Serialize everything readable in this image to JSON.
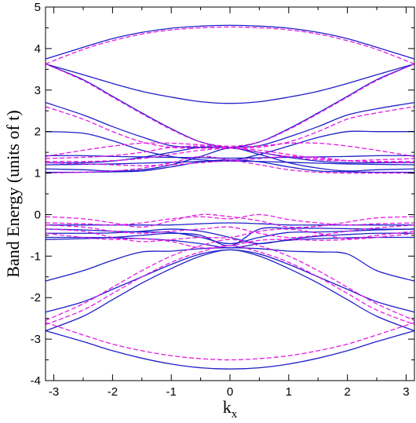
{
  "chart_data": {
    "type": "line",
    "title": "",
    "xlabel": "k",
    "xlabel_subscript": "x",
    "ylabel": "Band Energy (units of t)",
    "xlim": [
      -3.1416,
      3.1416
    ],
    "ylim": [
      -4,
      5
    ],
    "xticks": [
      -3,
      -2,
      -1,
      0,
      1,
      2,
      3
    ],
    "yticks": [
      -4,
      -3,
      -2,
      -1,
      0,
      1,
      2,
      3,
      4,
      5
    ],
    "grid": false,
    "legend": "none",
    "colors": {
      "solid": "#1f1fc8",
      "dashed": "#e619e6"
    },
    "x": [
      -3.1416,
      -2.5,
      -2.0,
      -1.5,
      -1.0,
      -0.5,
      0.0,
      0.5,
      1.0,
      1.5,
      2.0,
      2.5,
      3.1416
    ],
    "series": [
      {
        "style": "solid",
        "values": [
          3.75,
          4.03,
          4.24,
          4.39,
          4.49,
          4.54,
          4.56,
          4.54,
          4.49,
          4.39,
          4.24,
          4.03,
          3.75
        ]
      },
      {
        "style": "solid",
        "values": [
          3.63,
          3.37,
          3.16,
          2.97,
          2.83,
          2.72,
          2.68,
          2.72,
          2.83,
          2.97,
          3.16,
          3.37,
          3.63
        ]
      },
      {
        "style": "solid",
        "values": [
          3.63,
          3.25,
          2.85,
          2.45,
          2.07,
          1.75,
          1.62,
          1.75,
          2.07,
          2.45,
          2.85,
          3.25,
          3.63
        ]
      },
      {
        "style": "solid",
        "values": [
          2.7,
          2.4,
          2.12,
          1.87,
          1.66,
          1.62,
          1.62,
          1.5,
          1.38,
          1.29,
          1.25,
          1.25,
          1.25
        ]
      },
      {
        "style": "solid",
        "values": [
          2.0,
          1.96,
          1.78,
          1.55,
          1.4,
          1.32,
          1.3,
          1.45,
          1.65,
          1.86,
          2.0,
          2.0,
          2.0
        ]
      },
      {
        "style": "solid",
        "values": [
          1.25,
          1.25,
          1.29,
          1.38,
          1.5,
          1.62,
          1.62,
          1.66,
          1.87,
          2.12,
          2.4,
          2.55,
          2.7
        ]
      },
      {
        "style": "solid",
        "values": [
          1.42,
          1.42,
          1.4,
          1.39,
          1.38,
          1.37,
          1.36,
          1.37,
          1.38,
          1.39,
          1.4,
          1.42,
          1.42
        ]
      },
      {
        "style": "solid",
        "values": [
          1.1,
          1.08,
          1.05,
          1.08,
          1.2,
          1.4,
          1.6,
          1.45,
          1.25,
          1.12,
          1.05,
          1.08,
          1.1
        ]
      },
      {
        "style": "solid",
        "values": [
          1.02,
          1.02,
          1.03,
          1.05,
          1.15,
          1.27,
          1.32,
          1.27,
          1.15,
          1.05,
          1.03,
          1.02,
          1.02
        ]
      },
      {
        "style": "solid",
        "values": [
          1.2,
          1.21,
          1.22,
          1.24,
          1.26,
          1.28,
          1.29,
          1.28,
          1.26,
          1.24,
          1.22,
          1.21,
          1.2
        ]
      },
      {
        "style": "solid",
        "values": [
          -0.25,
          -0.25,
          -0.25,
          -0.25,
          -0.25,
          -0.22,
          -0.2,
          -0.22,
          -0.25,
          -0.25,
          -0.25,
          -0.25,
          -0.25
        ]
      },
      {
        "style": "solid",
        "values": [
          -0.35,
          -0.37,
          -0.4,
          -0.42,
          -0.43,
          -0.55,
          -0.7,
          -0.55,
          -0.43,
          -0.42,
          -0.4,
          -0.37,
          -0.35
        ]
      },
      {
        "style": "solid",
        "values": [
          -0.45,
          -0.45,
          -0.44,
          -0.4,
          -0.35,
          -0.4,
          -0.55,
          -0.7,
          -0.6,
          -0.52,
          -0.48,
          -0.45,
          -0.45
        ]
      },
      {
        "style": "solid",
        "values": [
          -0.55,
          -0.55,
          -0.56,
          -0.58,
          -0.62,
          -0.7,
          -0.8,
          -0.7,
          -0.62,
          -0.58,
          -0.56,
          -0.55,
          -0.55
        ]
      },
      {
        "style": "solid",
        "values": [
          -0.6,
          -0.58,
          -0.55,
          -0.5,
          -0.45,
          -0.5,
          -0.75,
          -0.35,
          -0.33,
          -0.33,
          -0.34,
          -0.35,
          -0.35
        ]
      },
      {
        "style": "solid",
        "values": [
          -1.6,
          -1.35,
          -1.1,
          -0.9,
          -0.88,
          -0.82,
          -0.8,
          -0.82,
          -0.88,
          -0.9,
          -0.95,
          -1.35,
          -1.6
        ]
      },
      {
        "style": "solid",
        "values": [
          -2.35,
          -2.1,
          -1.8,
          -1.5,
          -1.2,
          -0.95,
          -0.85,
          -0.95,
          -1.2,
          -1.5,
          -1.8,
          -2.1,
          -2.35
        ]
      },
      {
        "style": "solid",
        "values": [
          -2.8,
          -2.45,
          -2.05,
          -1.65,
          -1.3,
          -1.0,
          -0.85,
          -1.0,
          -1.3,
          -1.65,
          -2.05,
          -2.45,
          -2.8
        ]
      },
      {
        "style": "solid",
        "values": [
          -2.8,
          -3.06,
          -3.28,
          -3.46,
          -3.6,
          -3.69,
          -3.72,
          -3.69,
          -3.6,
          -3.46,
          -3.28,
          -3.06,
          -2.8
        ]
      },
      {
        "style": "dashed",
        "values": [
          3.63,
          3.98,
          4.19,
          4.35,
          4.45,
          4.5,
          4.52,
          4.5,
          4.45,
          4.35,
          4.19,
          3.98,
          3.63
        ]
      },
      {
        "style": "dashed",
        "values": [
          3.63,
          3.23,
          2.83,
          2.43,
          2.05,
          1.75,
          1.65,
          1.75,
          2.05,
          2.43,
          2.83,
          3.23,
          3.63
        ]
      },
      {
        "style": "dashed",
        "values": [
          2.6,
          2.3,
          2.0,
          1.75,
          1.62,
          1.6,
          1.6,
          1.55,
          1.45,
          1.35,
          1.3,
          1.28,
          1.28
        ]
      },
      {
        "style": "dashed",
        "values": [
          1.28,
          1.28,
          1.3,
          1.35,
          1.45,
          1.55,
          1.6,
          1.62,
          1.75,
          2.0,
          2.3,
          2.45,
          2.6
        ]
      },
      {
        "style": "dashed",
        "values": [
          1.4,
          1.55,
          1.65,
          1.72,
          1.72,
          1.68,
          1.62,
          1.65,
          1.72,
          1.72,
          1.65,
          1.55,
          1.4
        ]
      },
      {
        "style": "dashed",
        "values": [
          1.35,
          1.38,
          1.42,
          1.5,
          1.62,
          1.65,
          1.62,
          1.5,
          1.4,
          1.32,
          1.3,
          1.32,
          1.35
        ]
      },
      {
        "style": "dashed",
        "values": [
          1.25,
          1.22,
          1.2,
          1.18,
          1.2,
          1.25,
          1.3,
          1.35,
          1.4,
          1.38,
          1.3,
          1.27,
          1.25
        ]
      },
      {
        "style": "dashed",
        "values": [
          1.0,
          1.02,
          1.05,
          1.12,
          1.25,
          1.4,
          1.32,
          1.2,
          1.08,
          1.02,
          1.0,
          1.0,
          1.0
        ]
      },
      {
        "style": "dashed",
        "values": [
          -0.05,
          -0.1,
          -0.2,
          -0.3,
          -0.15,
          0.0,
          -0.05,
          -0.15,
          -0.3,
          -0.28,
          -0.18,
          -0.08,
          -0.05
        ]
      },
      {
        "style": "dashed",
        "values": [
          -0.2,
          -0.22,
          -0.25,
          -0.2,
          -0.1,
          -0.05,
          -0.1,
          0.0,
          -0.12,
          -0.2,
          -0.25,
          -0.22,
          -0.2
        ]
      },
      {
        "style": "dashed",
        "values": [
          -0.25,
          -0.3,
          -0.4,
          -0.45,
          -0.4,
          -0.35,
          -0.3,
          -0.45,
          -0.55,
          -0.5,
          -0.4,
          -0.32,
          -0.25
        ]
      },
      {
        "style": "dashed",
        "values": [
          -0.35,
          -0.4,
          -0.55,
          -0.65,
          -0.6,
          -0.55,
          -0.55,
          -0.4,
          -0.35,
          -0.45,
          -0.58,
          -0.5,
          -0.4
        ]
      },
      {
        "style": "dashed",
        "values": [
          -0.45,
          -0.55,
          -0.6,
          -0.58,
          -0.65,
          -0.8,
          -0.75,
          -0.62,
          -0.6,
          -0.62,
          -0.6,
          -0.55,
          -0.45
        ]
      },
      {
        "style": "dashed",
        "values": [
          -2.55,
          -2.15,
          -1.75,
          -1.35,
          -1.0,
          -0.75,
          -0.6,
          -0.75,
          -1.0,
          -1.35,
          -1.75,
          -2.15,
          -2.55
        ]
      },
      {
        "style": "dashed",
        "values": [
          -2.65,
          -2.3,
          -1.9,
          -1.5,
          -1.15,
          -0.9,
          -0.75,
          -0.9,
          -1.15,
          -1.5,
          -1.9,
          -2.3,
          -2.65
        ]
      },
      {
        "style": "dashed",
        "values": [
          -2.6,
          -2.9,
          -3.12,
          -3.28,
          -3.4,
          -3.47,
          -3.5,
          -3.47,
          -3.4,
          -3.28,
          -3.12,
          -2.9,
          -2.6
        ]
      }
    ]
  }
}
